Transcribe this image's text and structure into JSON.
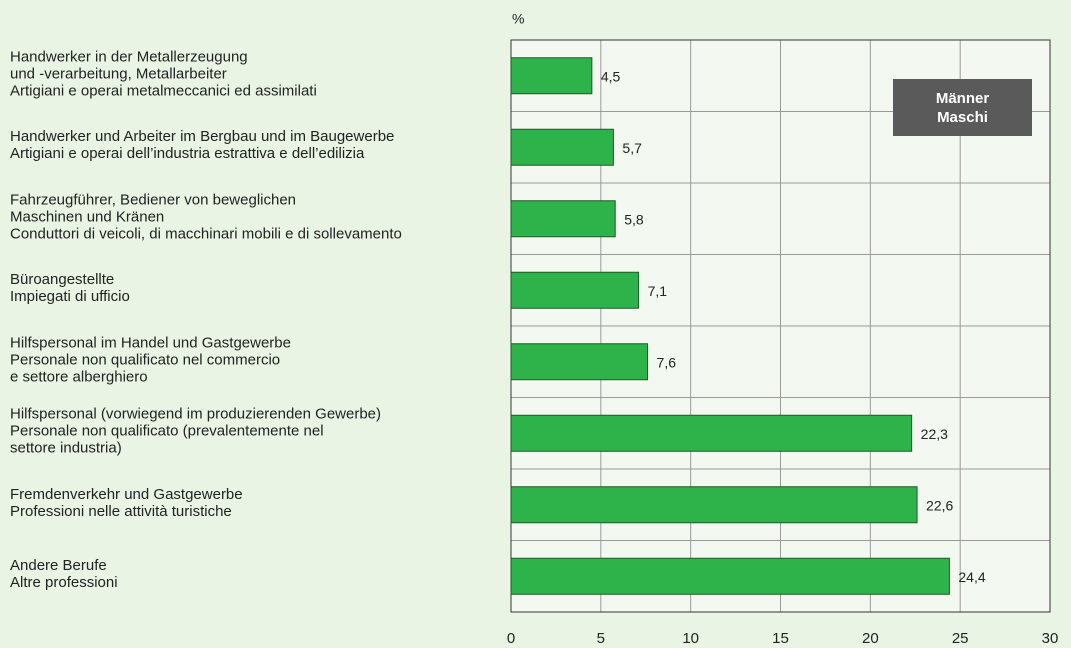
{
  "chart_data": {
    "type": "bar",
    "orientation": "horizontal",
    "xlabel": "%",
    "annotation": "Männer\nMaschi",
    "categories": [
      "Handwerker in der Metallerzeugung\nund -verarbeitung, Metallarbeiter\nArtigiani e operai metalmeccanici ed assimilati",
      "Handwerker und Arbeiter im Bergbau und im Baugewerbe\nArtigiani e operai dell’industria estrattiva e dell’edilizia",
      "Fahrzeugführer, Bediener von beweglichen\nMaschinen und Kränen\nConduttori di veicoli, di macchinari mobili e di sollevamento",
      "Büroangestellte\nImpiegati di ufficio",
      "Hilfspersonal im Handel und Gastgewerbe\nPersonale non qualificato nel commercio\ne settore alberghiero",
      "Hilfspersonal (vorwiegend im produzierenden Gewerbe)\nPersonale non qualificato (prevalentemente nel\nsettore industria)",
      "Fremdenverkehr und Gastgewerbe\nProfessioni nelle attività turistiche",
      "Andere Berufe\nAltre professioni"
    ],
    "values": [
      4.5,
      5.7,
      5.8,
      7.1,
      7.6,
      22.3,
      22.6,
      24.4
    ],
    "value_labels": [
      "4,5",
      "5,7",
      "5,8",
      "7,1",
      "7,6",
      "22,3",
      "22,6",
      "24,4"
    ],
    "color": "#2db34a",
    "xlim": [
      0,
      30
    ],
    "xticks": [
      0,
      5,
      10,
      15,
      20,
      25,
      30
    ],
    "grid": true
  }
}
